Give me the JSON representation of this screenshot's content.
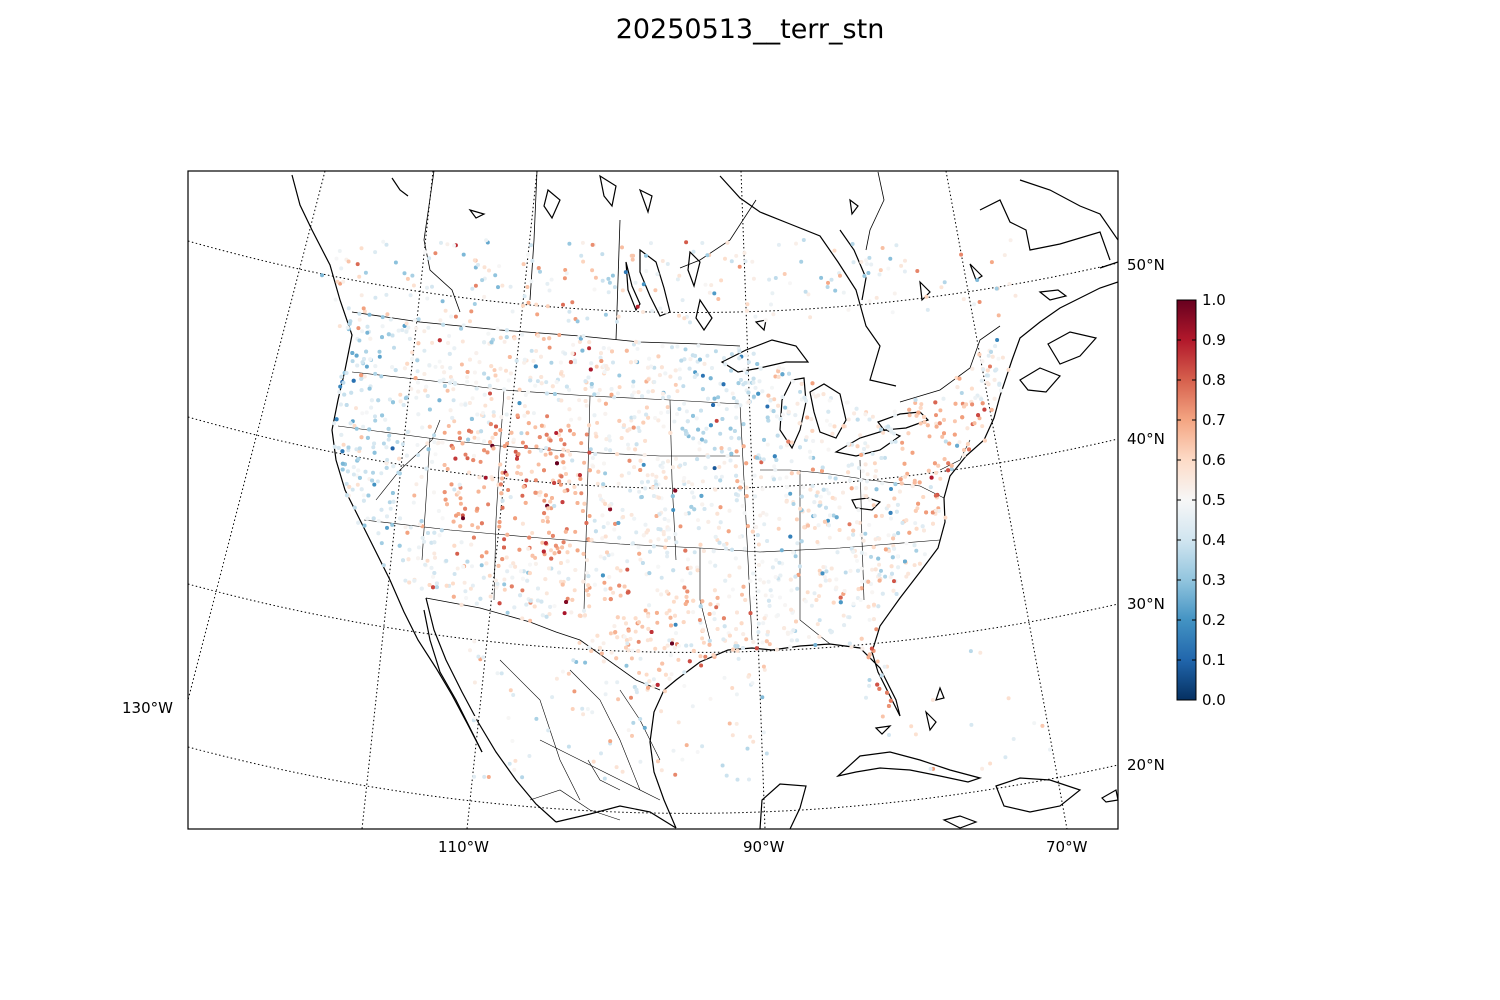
{
  "title": "20250513__terr_stn",
  "map": {
    "longitude_labels": [
      "130°W",
      "110°W",
      "90°W",
      "70°W"
    ],
    "latitude_labels": [
      "20°N",
      "30°N",
      "40°N",
      "50°N"
    ]
  },
  "colorbar": {
    "colormap": "RdBu_r",
    "min": 0.0,
    "max": 1.0,
    "tick_values": [
      0.0,
      0.1,
      0.2,
      0.3,
      0.4,
      0.5,
      0.6,
      0.7,
      0.8,
      0.9,
      1.0
    ],
    "tick_labels": [
      "0.0",
      "0.1",
      "0.2",
      "0.3",
      "0.4",
      "0.5",
      "0.6",
      "0.7",
      "0.8",
      "0.9",
      "1.0"
    ],
    "colors": {
      "low": "#053061",
      "mid_low": "#4393c3",
      "mid": "#f7f7f7",
      "mid_high": "#d6604d",
      "high": "#67001f"
    }
  }
}
